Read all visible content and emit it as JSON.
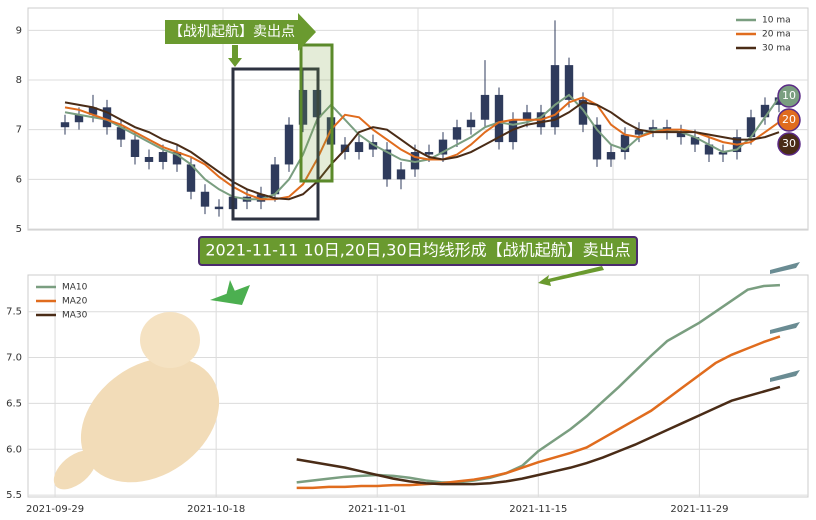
{
  "chart_data": [
    {
      "type": "candlestick",
      "categories": [
        null,
        null,
        null,
        null,
        null,
        null,
        null,
        null,
        null,
        null,
        null,
        null,
        null,
        null,
        null,
        null,
        null,
        null,
        null,
        null,
        null,
        null,
        null,
        null,
        null,
        null,
        null,
        null,
        null,
        null,
        null,
        null,
        null,
        null,
        null,
        null,
        null,
        null,
        null,
        null,
        null,
        null,
        null,
        null,
        null,
        null,
        null,
        null,
        null,
        null,
        null,
        null
      ],
      "open": [
        7.05,
        7.15,
        7.3,
        7.45,
        7.05,
        6.8,
        6.45,
        6.35,
        6.55,
        6.3,
        5.75,
        5.45,
        5.4,
        5.65,
        5.55,
        5.7,
        6.3,
        7.1,
        7.8,
        7.25,
        6.7,
        6.55,
        6.75,
        6.6,
        6.0,
        6.2,
        6.55,
        6.5,
        6.8,
        7.05,
        7.2,
        7.7,
        6.75,
        7.2,
        7.35,
        7.05,
        8.3,
        7.6,
        7.1,
        6.4,
        6.55,
        6.9,
        7.0,
        7.05,
        6.95,
        6.85,
        6.7,
        6.5,
        6.55,
        6.85,
        7.25,
        7.5
      ],
      "high": [
        7.3,
        7.45,
        7.7,
        7.6,
        7.2,
        6.95,
        6.6,
        6.7,
        6.7,
        6.45,
        5.9,
        5.6,
        5.8,
        5.8,
        5.85,
        6.45,
        7.25,
        8.2,
        7.95,
        7.4,
        6.85,
        6.9,
        6.9,
        6.75,
        6.35,
        6.7,
        6.7,
        6.95,
        7.2,
        7.35,
        8.4,
        7.85,
        7.35,
        7.5,
        7.5,
        9.2,
        8.45,
        7.75,
        7.25,
        6.7,
        7.05,
        7.15,
        7.2,
        7.2,
        7.1,
        7.0,
        6.85,
        6.7,
        7.0,
        7.4,
        7.65,
        7.8
      ],
      "low": [
        6.9,
        7.0,
        7.15,
        6.9,
        6.65,
        6.3,
        6.2,
        6.2,
        6.15,
        5.6,
        5.3,
        5.25,
        5.25,
        5.4,
        5.4,
        5.55,
        6.15,
        6.95,
        7.1,
        6.55,
        6.4,
        6.4,
        6.45,
        5.85,
        5.8,
        6.05,
        6.35,
        6.35,
        6.65,
        6.9,
        7.05,
        6.6,
        6.6,
        7.05,
        6.9,
        6.9,
        7.45,
        6.95,
        6.25,
        6.25,
        6.4,
        6.75,
        6.85,
        6.8,
        6.7,
        6.55,
        6.35,
        6.35,
        6.4,
        6.7,
        7.1,
        7.35
      ],
      "close": [
        7.15,
        7.3,
        7.45,
        7.05,
        6.8,
        6.45,
        6.35,
        6.55,
        6.3,
        5.75,
        5.45,
        5.4,
        5.65,
        5.55,
        5.7,
        6.3,
        7.1,
        7.8,
        7.25,
        6.7,
        6.55,
        6.75,
        6.6,
        6.0,
        6.2,
        6.55,
        6.5,
        6.8,
        7.05,
        7.2,
        7.7,
        6.75,
        7.2,
        7.35,
        7.05,
        8.3,
        7.6,
        7.1,
        6.4,
        6.55,
        6.9,
        7.0,
        7.05,
        6.95,
        6.85,
        6.7,
        6.5,
        6.55,
        6.85,
        7.25,
        7.5,
        7.65
      ],
      "candle_color": "#2f3b5c",
      "series": [
        {
          "name": "10 ma",
          "color": "#7a9e80",
          "values": [
            7.35,
            7.3,
            7.25,
            7.2,
            7.05,
            6.9,
            6.75,
            6.6,
            6.5,
            6.3,
            6.0,
            5.8,
            5.65,
            5.6,
            5.6,
            5.7,
            6.0,
            6.5,
            7.2,
            7.5,
            7.2,
            6.9,
            6.7,
            6.55,
            6.4,
            6.35,
            6.4,
            6.55,
            6.7,
            6.85,
            7.05,
            7.15,
            7.1,
            7.15,
            7.25,
            7.5,
            7.7,
            7.4,
            7.0,
            6.7,
            6.6,
            6.85,
            7.0,
            7.0,
            6.95,
            6.85,
            6.7,
            6.55,
            6.6,
            6.85,
            7.25,
            7.65
          ]
        },
        {
          "name": "20 ma",
          "color": "#e06c1e",
          "values": [
            7.45,
            7.4,
            7.3,
            7.2,
            7.1,
            6.95,
            6.8,
            6.65,
            6.55,
            6.45,
            6.3,
            6.05,
            5.85,
            5.7,
            5.6,
            5.6,
            5.65,
            5.9,
            6.4,
            7.0,
            7.3,
            7.25,
            7.0,
            6.8,
            6.6,
            6.45,
            6.4,
            6.4,
            6.5,
            6.7,
            6.95,
            7.15,
            7.2,
            7.2,
            7.2,
            7.3,
            7.55,
            7.65,
            7.5,
            7.1,
            6.9,
            6.85,
            6.95,
            7.0,
            7.0,
            6.95,
            6.85,
            6.75,
            6.7,
            6.75,
            6.95,
            7.15
          ]
        },
        {
          "name": "30 ma",
          "color": "#4a2c17",
          "values": [
            7.55,
            7.5,
            7.45,
            7.35,
            7.2,
            7.05,
            6.95,
            6.8,
            6.7,
            6.55,
            6.35,
            6.15,
            5.95,
            5.8,
            5.7,
            5.62,
            5.6,
            5.7,
            5.95,
            6.3,
            6.6,
            6.95,
            7.05,
            7.0,
            6.8,
            6.6,
            6.45,
            6.4,
            6.45,
            6.55,
            6.7,
            6.85,
            7.0,
            7.1,
            7.15,
            7.2,
            7.35,
            7.55,
            7.5,
            7.35,
            7.15,
            7.0,
            6.95,
            6.95,
            6.95,
            6.95,
            6.9,
            6.85,
            6.8,
            6.8,
            6.85,
            6.95
          ]
        }
      ],
      "end_labels": [
        "10",
        "20",
        "30"
      ],
      "ylim": [
        4.98,
        9.45
      ],
      "yticks": [
        5,
        6,
        7,
        8,
        9
      ],
      "grid": true,
      "legend": "upper right",
      "annotations": [
        "【战机起航】卖出点",
        "2021-11-11 10日,20日,30日均线形成【战机起航】卖出点"
      ]
    },
    {
      "type": "line",
      "categories": [
        "2021-09-29",
        null,
        null,
        null,
        null,
        null,
        null,
        null,
        null,
        null,
        "2021-10-18",
        null,
        null,
        null,
        null,
        null,
        null,
        null,
        null,
        null,
        "2021-11-01",
        null,
        null,
        null,
        null,
        null,
        null,
        null,
        null,
        null,
        "2021-11-15",
        null,
        null,
        null,
        null,
        null,
        null,
        null,
        null,
        null,
        "2021-11-29",
        null,
        null,
        null,
        null,
        null
      ],
      "series": [
        {
          "name": "MA10",
          "color": "#7a9e80",
          "values": [
            null,
            null,
            null,
            null,
            null,
            null,
            null,
            null,
            null,
            null,
            null,
            null,
            null,
            null,
            null,
            5.64,
            5.66,
            5.68,
            5.7,
            5.71,
            5.72,
            5.71,
            5.69,
            5.66,
            5.64,
            5.64,
            5.66,
            5.69,
            5.74,
            5.82,
            5.98,
            6.1,
            6.22,
            6.36,
            6.52,
            6.68,
            6.85,
            7.02,
            7.18,
            7.28,
            7.38,
            7.5,
            7.62,
            7.74,
            7.78,
            7.79
          ]
        },
        {
          "name": "MA20",
          "color": "#e06c1e",
          "values": [
            null,
            null,
            null,
            null,
            null,
            null,
            null,
            null,
            null,
            null,
            null,
            null,
            null,
            null,
            null,
            5.58,
            5.58,
            5.59,
            5.59,
            5.6,
            5.6,
            5.61,
            5.61,
            5.62,
            5.63,
            5.65,
            5.67,
            5.7,
            5.74,
            5.8,
            5.86,
            5.91,
            5.96,
            6.02,
            6.12,
            6.22,
            6.32,
            6.42,
            6.55,
            6.68,
            6.81,
            6.94,
            7.03,
            7.1,
            7.17,
            7.23
          ]
        },
        {
          "name": "MA30",
          "color": "#4a2c17",
          "values": [
            null,
            null,
            null,
            null,
            null,
            null,
            null,
            null,
            null,
            null,
            null,
            null,
            null,
            null,
            null,
            5.89,
            5.86,
            5.83,
            5.8,
            5.76,
            5.72,
            5.68,
            5.65,
            5.63,
            5.62,
            5.62,
            5.62,
            5.63,
            5.65,
            5.68,
            5.72,
            5.76,
            5.8,
            5.85,
            5.91,
            5.98,
            6.05,
            6.13,
            6.21,
            6.29,
            6.37,
            6.45,
            6.53,
            6.58,
            6.63,
            6.68
          ]
        }
      ],
      "ylim": [
        5.48,
        7.9
      ],
      "yticks": [
        5.5,
        {
          "value": 6,
          "label": "6.0"
        },
        6.5,
        {
          "value": 7,
          "label": "7.0"
        },
        7.5
      ],
      "grid": true,
      "legend": "upper left"
    }
  ]
}
